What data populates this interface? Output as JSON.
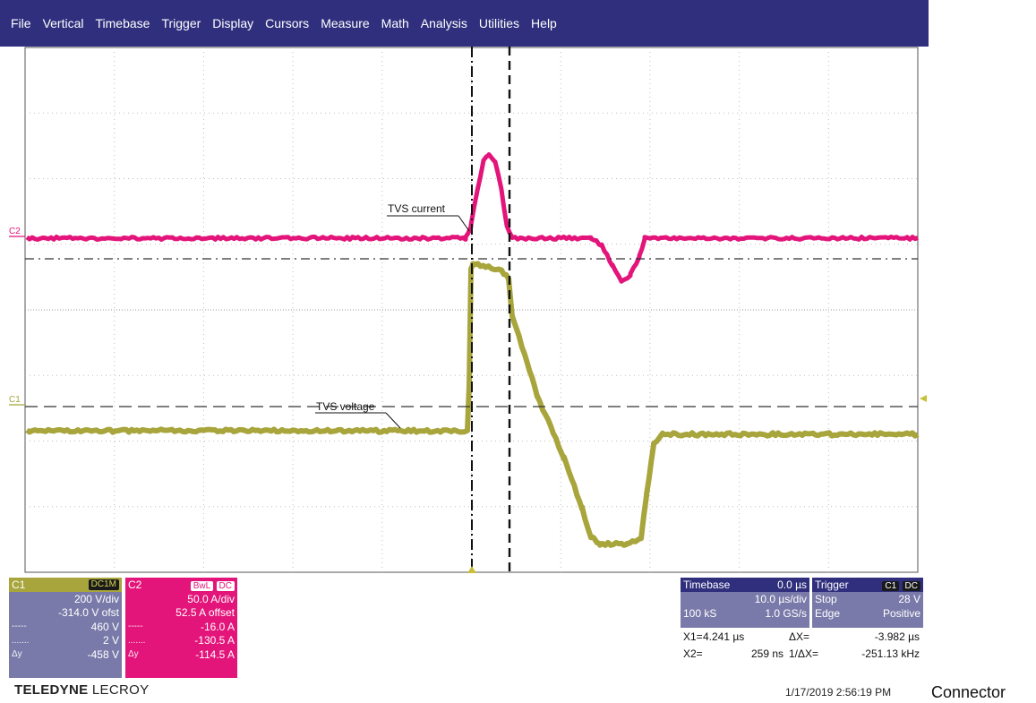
{
  "menu": [
    "File",
    "Vertical",
    "Timebase",
    "Trigger",
    "Display",
    "Cursors",
    "Measure",
    "Math",
    "Analysis",
    "Utilities",
    "Help"
  ],
  "colors": {
    "menubar": "#2f2f7e",
    "c1_trace": "#a7a53b",
    "c2_trace": "#e3157a",
    "ch_box": "#7a7aaa"
  },
  "screen": {
    "label_c1": "C1",
    "label_c2": "C2",
    "annotation_current": "TVS current",
    "annotation_voltage": "TVS voltage"
  },
  "c1": {
    "name": "C1",
    "coupling": "DC1M",
    "vdiv": "200 V/div",
    "offset": "-314.0 V ofst",
    "cursor1_key": "-----",
    "cursor1": "460 V",
    "cursor2_key": ".......",
    "cursor2": "2 V",
    "delta_key": "Δy",
    "delta": "-458 V"
  },
  "c2": {
    "name": "C2",
    "coupling_bw": "BwL",
    "coupling_dc": "DC",
    "vdiv": "50.0 A/div",
    "offset": "52.5 A offset",
    "cursor1_key": "-----",
    "cursor1": "-16.0 A",
    "cursor2_key": ".......",
    "cursor2": "-130.5 A",
    "delta_key": "Δy",
    "delta": "-114.5 A"
  },
  "timebase": {
    "label": "Timebase",
    "delay": "0.0 µs",
    "tdiv": "10.0 µs/div",
    "samples": "100 kS",
    "rate": "1.0 GS/s"
  },
  "trigger": {
    "label": "Trigger",
    "source": "C1",
    "coupling": "DC",
    "mode": "Stop",
    "level": "28 V",
    "type": "Edge",
    "slope": "Positive"
  },
  "cursors": {
    "x1_label": "X1=",
    "x1": "4.241 µs",
    "dx_label": "ΔX=",
    "dx": "-3.982 µs",
    "x2_label": "X2=",
    "x2": "259 ns",
    "inv_label": "1/ΔX=",
    "inv": "-251.13 kHz"
  },
  "logo": {
    "bold": "TELEDYNE",
    "light": "LECROY"
  },
  "timestamp": "1/17/2019 2:56:19 PM",
  "caption": "Connector"
}
